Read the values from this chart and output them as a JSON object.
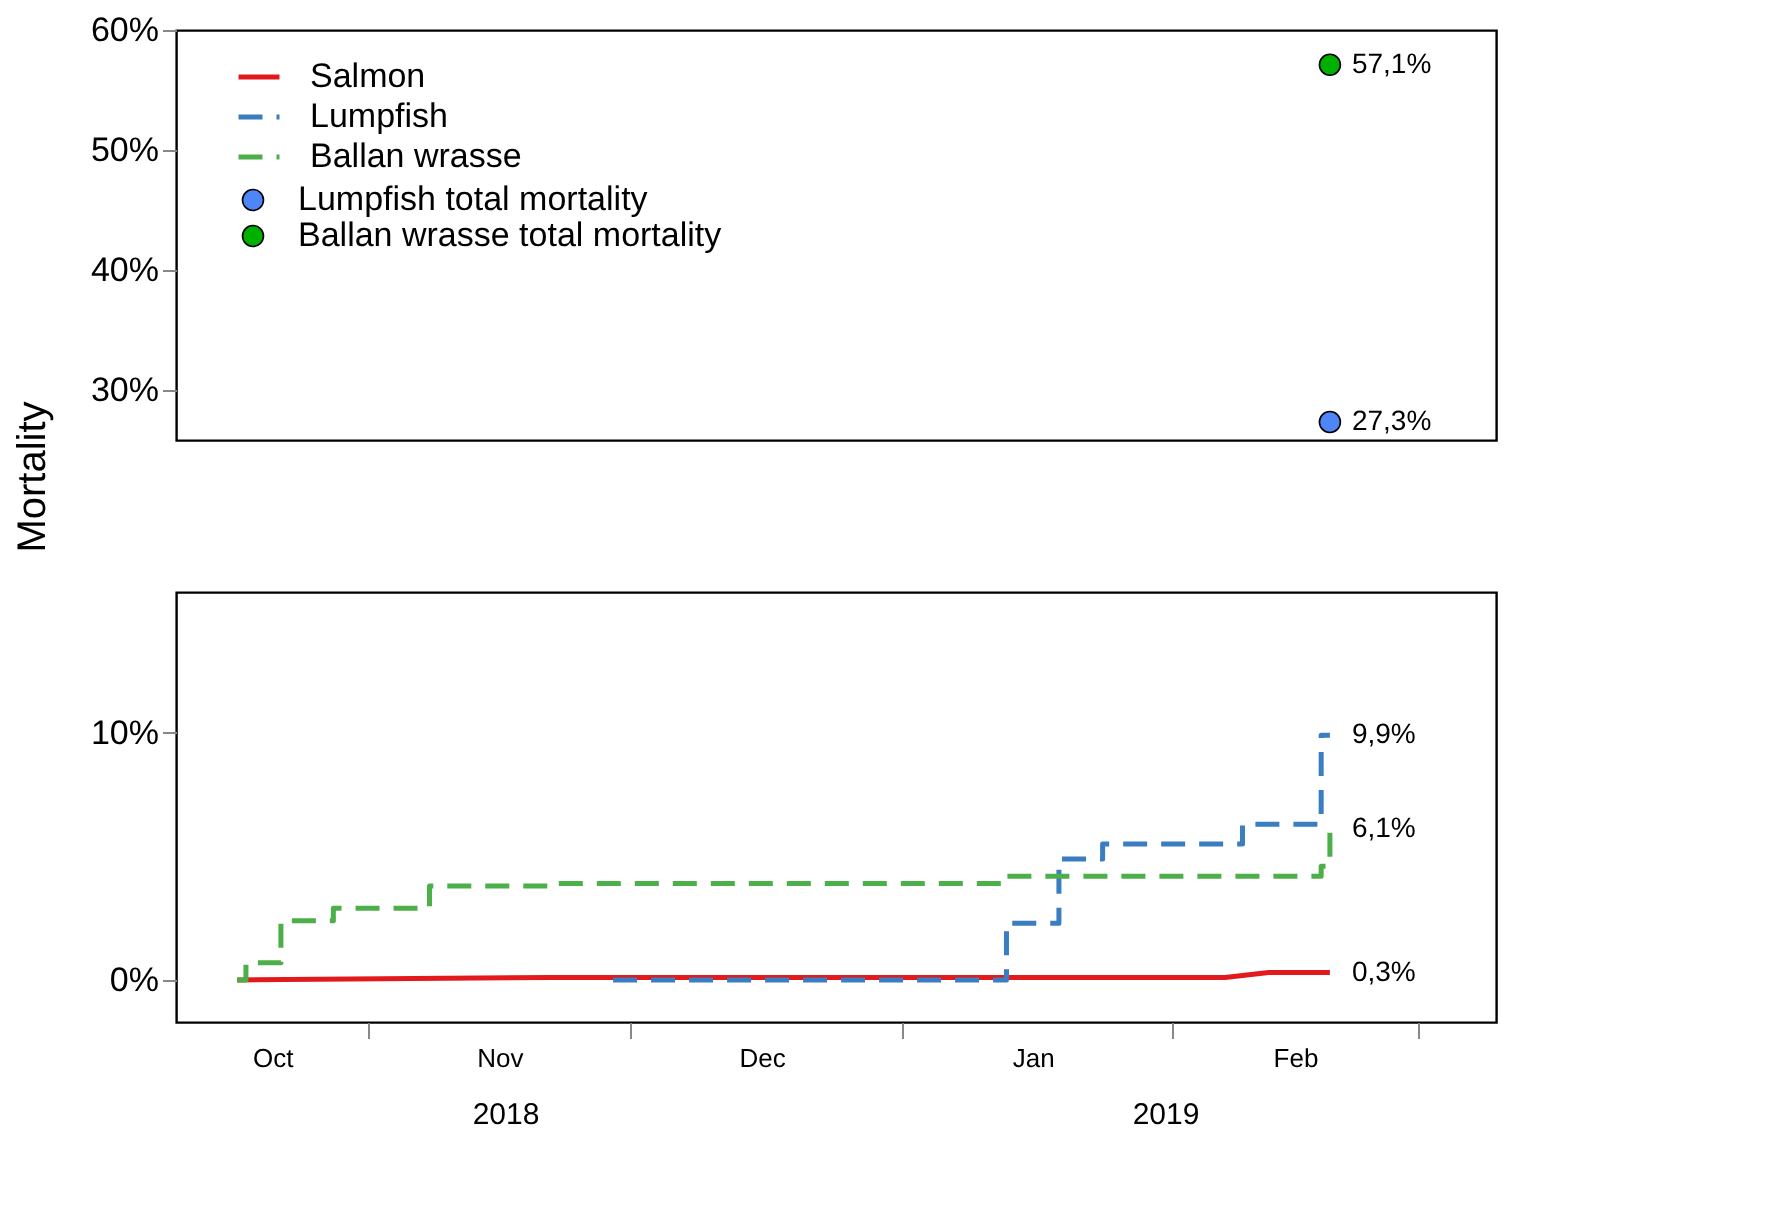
{
  "chart_data": [
    {
      "type": "scatter",
      "ylabel": "Mortality",
      "xlim": [
        "2018-10-10",
        "2019-03-10"
      ],
      "ylim": [
        25.8,
        60
      ],
      "tick_labels": "y",
      "marker": "circle",
      "legend": "top left",
      "yticks": [
        {
          "value": 30,
          "label": "30%"
        },
        {
          "value": 40,
          "label": "40%"
        },
        {
          "value": 50,
          "label": "50%"
        },
        {
          "value": 60,
          "label": "60%"
        }
      ],
      "series": [
        {
          "name": "Lumpfish total mortality",
          "color": "#4f86f7",
          "x": [
            "2019-02-19"
          ],
          "values": [
            27.3
          ],
          "value_labels": [
            "27,3%"
          ]
        },
        {
          "name": "Ballan wrasse total mortality",
          "color": "#00b000",
          "x": [
            "2019-02-19"
          ],
          "values": [
            57.1
          ],
          "value_labels": [
            "57,1%"
          ]
        }
      ]
    },
    {
      "type": "step",
      "xlim": [
        "2018-10-10",
        "2019-03-10"
      ],
      "ylim": [
        -1.7,
        15.7
      ],
      "legend": "top left",
      "yticks": [
        {
          "value": 0,
          "label": "0%"
        },
        {
          "value": 10,
          "label": "10%"
        }
      ],
      "xticks": [
        {
          "value": "2018-10-21",
          "label": "Oct"
        },
        {
          "value": "2018-11-01",
          "label": null
        },
        {
          "value": "2018-11-16",
          "label": "Nov"
        },
        {
          "value": "2018-12-01",
          "label": null
        },
        {
          "value": "2018-12-16",
          "label": "Dec"
        },
        {
          "value": "2019-01-01",
          "label": null
        },
        {
          "value": "2019-01-16",
          "label": "Jan"
        },
        {
          "value": "2019-02-01",
          "label": null
        },
        {
          "value": "2019-02-15",
          "label": "Feb"
        },
        {
          "value": "2019-03-01",
          "label": null
        }
      ],
      "annotations": [
        "2018",
        "2019"
      ],
      "series": [
        {
          "name": "Salmon",
          "type": "line",
          "color": "#e31a1c",
          "line_style": "solid",
          "x": [
            "2018-10-17",
            "2018-11-22",
            "2019-02-07",
            "2019-02-12",
            "2019-02-19"
          ],
          "values": [
            0,
            0.1,
            0.1,
            0.3,
            0.3
          ],
          "value_labels": [
            null,
            null,
            null,
            null,
            "0,3%"
          ]
        },
        {
          "name": "Lumpfish",
          "color": "#3a7dc0",
          "line_style": "dashed",
          "x": [
            "2018-11-29",
            "2019-01-13",
            "2019-01-19",
            "2019-01-24",
            "2019-02-09",
            "2019-02-18",
            "2019-02-19"
          ],
          "values": [
            0,
            2.3,
            4.9,
            5.5,
            6.3,
            9.9,
            9.9
          ],
          "value_labels": [
            null,
            null,
            null,
            null,
            null,
            null,
            "9,9%"
          ]
        },
        {
          "name": "Ballan wrasse",
          "color": "#4daf4a",
          "line_style": "dashed",
          "x": [
            "2018-10-17",
            "2018-10-18",
            "2018-10-22",
            "2018-10-28",
            "2018-11-08",
            "2018-11-22",
            "2019-01-13",
            "2019-02-18",
            "2019-02-19"
          ],
          "values": [
            0,
            0.7,
            2.4,
            2.9,
            3.8,
            3.9,
            4.2,
            4.6,
            6.1
          ],
          "value_labels": [
            null,
            null,
            null,
            null,
            null,
            null,
            null,
            null,
            "6,1%"
          ]
        }
      ]
    }
  ]
}
